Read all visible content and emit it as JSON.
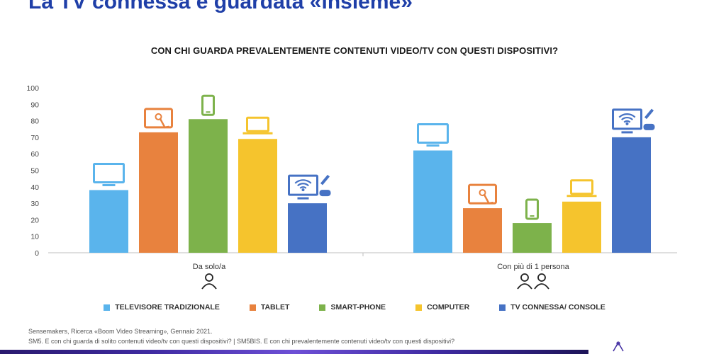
{
  "slide_title": "La TV connessa è guardata «insieme»",
  "chart_data": {
    "type": "bar",
    "title": "CON CHI GUARDA PREVALENTEMENTE CONTENUTI VIDEO/TV CON QUESTI DISPOSITIVI?",
    "categories": [
      "Da solo/a",
      "Con più di 1 persona"
    ],
    "category_icons": [
      "person-icon",
      "two-persons-icon"
    ],
    "series": [
      {
        "name": "TELEVISORE TRADIZIONALE",
        "color": "#5ab4ec",
        "icon": "tv-icon",
        "values": [
          38,
          62
        ]
      },
      {
        "name": "TABLET",
        "color": "#e8823e",
        "icon": "tablet-touch-icon",
        "values": [
          73,
          27
        ]
      },
      {
        "name": "SMART-PHONE",
        "color": "#7db24b",
        "icon": "smartphone-icon",
        "values": [
          81,
          18
        ]
      },
      {
        "name": "COMPUTER",
        "color": "#f5c42d",
        "icon": "laptop-icon",
        "values": [
          69,
          31
        ]
      },
      {
        "name": "TV CONNESSA/ CONSOLE",
        "color": "#4672c4",
        "icon": "smart-tv-console-icon",
        "values": [
          30,
          70
        ]
      }
    ],
    "ylim": [
      0,
      100
    ],
    "yticks": [
      "0",
      "10",
      "20",
      "30",
      "40",
      "50",
      "60",
      "70",
      "80",
      "90",
      "100"
    ],
    "grid": false,
    "legend_position": "bottom"
  },
  "source_lines": [
    "Sensemakers, Ricerca «Boom Video Streaming», Gennaio 2021.",
    "SM5. E con chi guarda di solito contenuti video/tv con questi dispositivi? | SM5BIS. E con chi prevalentemente contenuti video/tv con questi dispositivi?"
  ]
}
